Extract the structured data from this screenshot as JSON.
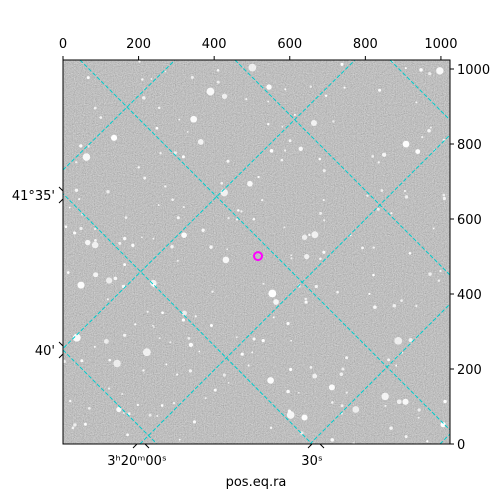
{
  "chart_data": {
    "type": "image",
    "xlabel": "pos.eq.ra",
    "xlim": [
      0,
      1024
    ],
    "ylim": [
      0,
      1024
    ],
    "xticks": [
      0,
      200,
      400,
      600,
      800,
      1000
    ],
    "yticks": [
      0,
      200,
      400,
      600,
      800,
      1000
    ],
    "ra_ticks": [
      "3ʰ20ᵐ00ˢ",
      "30ˢ"
    ],
    "dec_ticks": [
      "41°35'",
      "40'"
    ],
    "marker": {
      "x": 516,
      "y": 501,
      "color": "#ff00ff"
    },
    "grid_color": "#00cccc"
  }
}
